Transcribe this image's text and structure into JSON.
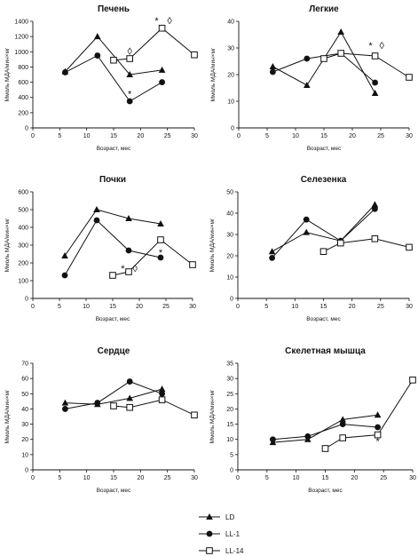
{
  "legend": [
    {
      "name": "LD",
      "marker": "triangle"
    },
    {
      "name": "LL-1",
      "marker": "circle"
    },
    {
      "name": "LL-14",
      "marker": "square-open"
    }
  ],
  "chart_data": [
    {
      "type": "line",
      "title": "Печень",
      "xlabel": "Возраст, мес",
      "ylabel": "Ммоль МДА/мин×мг",
      "xlim": [
        0,
        30
      ],
      "ylim": [
        0,
        1400
      ],
      "xticks": [
        0,
        5,
        10,
        15,
        20,
        25,
        30
      ],
      "yticks": [
        0,
        200,
        400,
        600,
        800,
        1000,
        1200,
        1400
      ],
      "ytick_labels": [
        "0",
        "200",
        "400",
        "600",
        "800",
        "1000",
        "1200",
        "1400"
      ],
      "series": [
        {
          "name": "LD",
          "x": [
            6,
            12,
            18,
            24
          ],
          "y": [
            740,
            1200,
            700,
            760
          ]
        },
        {
          "name": "LL-1",
          "x": [
            6,
            12,
            18,
            24
          ],
          "y": [
            730,
            950,
            350,
            600
          ]
        },
        {
          "name": "LL-14",
          "x": [
            15,
            18,
            24,
            30
          ],
          "y": [
            890,
            910,
            1310,
            960
          ]
        }
      ],
      "annotations": [
        {
          "text": "*",
          "x": 18,
          "y": 450
        },
        {
          "text": "◊",
          "x": 18,
          "y": 1010
        },
        {
          "text": "*",
          "x": 23,
          "y": 1410
        },
        {
          "text": "◊",
          "x": 25.4,
          "y": 1410
        }
      ]
    },
    {
      "type": "line",
      "title": "Легкие",
      "xlabel": "Возраст, мес",
      "ylabel": "Ммоль МДА/мин×мг",
      "xlim": [
        0,
        30
      ],
      "ylim": [
        0,
        40
      ],
      "xticks": [
        0,
        5,
        10,
        15,
        20,
        25,
        30
      ],
      "yticks": [
        0,
        10,
        20,
        30,
        40
      ],
      "ytick_labels": [
        "0",
        "10",
        "20",
        "30",
        "40"
      ],
      "series": [
        {
          "name": "LD",
          "x": [
            6,
            12,
            18,
            24
          ],
          "y": [
            23,
            16,
            36,
            13
          ]
        },
        {
          "name": "LL-1",
          "x": [
            6,
            12,
            18,
            24
          ],
          "y": [
            21,
            26,
            28,
            17
          ]
        },
        {
          "name": "LL-14",
          "x": [
            15,
            18,
            24,
            30
          ],
          "y": [
            26,
            28,
            27,
            19
          ]
        }
      ],
      "annotations": [
        {
          "text": "*",
          "x": 23.2,
          "y": 31
        },
        {
          "text": "◊",
          "x": 25.2,
          "y": 31
        }
      ]
    },
    {
      "type": "line",
      "title": "Почки",
      "xlabel": "Возраст, мес",
      "ylabel": "Ммоль МДА/мин×мг",
      "xlim": [
        0,
        30
      ],
      "ylim": [
        0,
        600
      ],
      "xticks": [
        0,
        5,
        10,
        15,
        20,
        25,
        30
      ],
      "yticks": [
        0,
        100,
        200,
        300,
        400,
        500,
        600
      ],
      "ytick_labels": [
        "0",
        "100",
        "200",
        "300",
        "400",
        "500",
        "600"
      ],
      "series": [
        {
          "name": "LD",
          "x": [
            6,
            12,
            18,
            24
          ],
          "y": [
            240,
            500,
            450,
            420
          ]
        },
        {
          "name": "LL-1",
          "x": [
            6,
            12,
            18,
            24
          ],
          "y": [
            130,
            440,
            270,
            230
          ]
        },
        {
          "name": "LL-14",
          "x": [
            15,
            18,
            24,
            30
          ],
          "y": [
            130,
            150,
            330,
            190
          ]
        }
      ],
      "annotations": [
        {
          "text": "*",
          "x": 16.9,
          "y": 170
        },
        {
          "text": "◊",
          "x": 19.2,
          "y": 170
        },
        {
          "text": "*",
          "x": 24,
          "y": 260
        }
      ]
    },
    {
      "type": "line",
      "title": "Селезенка",
      "xlabel": "Возраст, мес",
      "ylabel": "Ммоль МДА/мин×мг",
      "xlim": [
        0,
        30
      ],
      "ylim": [
        0,
        50
      ],
      "xticks": [
        0,
        5,
        10,
        15,
        20,
        25,
        30
      ],
      "yticks": [
        0,
        10,
        20,
        30,
        40,
        50
      ],
      "ytick_labels": [
        "0",
        "10",
        "20",
        "30",
        "40",
        "50"
      ],
      "series": [
        {
          "name": "LD",
          "x": [
            6,
            12,
            18,
            24
          ],
          "y": [
            22,
            31,
            27,
            44
          ]
        },
        {
          "name": "LL-1",
          "x": [
            6,
            12,
            18,
            24
          ],
          "y": [
            19,
            37,
            27,
            42
          ]
        },
        {
          "name": "LL-14",
          "x": [
            15,
            18,
            24,
            30
          ],
          "y": [
            22,
            26,
            28,
            24
          ]
        }
      ],
      "annotations": []
    },
    {
      "type": "line",
      "title": "Сердце",
      "xlabel": "Возраст, мес",
      "ylabel": "Ммоль МДА/мин×мг",
      "xlim": [
        0,
        30
      ],
      "ylim": [
        0,
        70
      ],
      "xticks": [
        0,
        5,
        10,
        15,
        20,
        25,
        30
      ],
      "yticks": [
        0,
        10,
        20,
        30,
        40,
        50,
        60,
        70
      ],
      "ytick_labels": [
        "0",
        "10",
        "20",
        "30",
        "40",
        "50",
        "60",
        "70"
      ],
      "series": [
        {
          "name": "LD",
          "x": [
            6,
            12,
            18,
            24
          ],
          "y": [
            44,
            43,
            47,
            53
          ]
        },
        {
          "name": "LL-1",
          "x": [
            6,
            12,
            18,
            24
          ],
          "y": [
            40,
            44,
            58,
            50
          ]
        },
        {
          "name": "LL-14",
          "x": [
            15,
            18,
            24,
            30
          ],
          "y": [
            42,
            41,
            46,
            36
          ]
        }
      ],
      "annotations": []
    },
    {
      "type": "line",
      "title": "Скелетная мышца",
      "xlabel": "Возраст, мес",
      "ylabel": "Ммоль МДА/мин×мг",
      "xlim": [
        0,
        30
      ],
      "ylim": [
        0,
        35
      ],
      "xticks": [
        0,
        5,
        10,
        15,
        20,
        25,
        30
      ],
      "yticks": [
        0,
        5,
        10,
        15,
        20,
        25,
        30,
        35
      ],
      "ytick_labels": [
        "0",
        "5",
        "10",
        "15",
        "20",
        "25",
        "30",
        "35"
      ],
      "series": [
        {
          "name": "LD",
          "x": [
            6,
            12,
            18,
            24
          ],
          "y": [
            9,
            10,
            16.5,
            18
          ]
        },
        {
          "name": "LL-1",
          "x": [
            6,
            12,
            18,
            24
          ],
          "y": [
            10,
            11,
            15,
            14
          ]
        },
        {
          "name": "LL-14",
          "x": [
            15,
            18,
            24,
            30
          ],
          "y": [
            7,
            10.5,
            11.5,
            29.5
          ]
        }
      ],
      "annotations": [
        {
          "text": "*",
          "x": 24,
          "y": 9.5
        }
      ]
    }
  ]
}
